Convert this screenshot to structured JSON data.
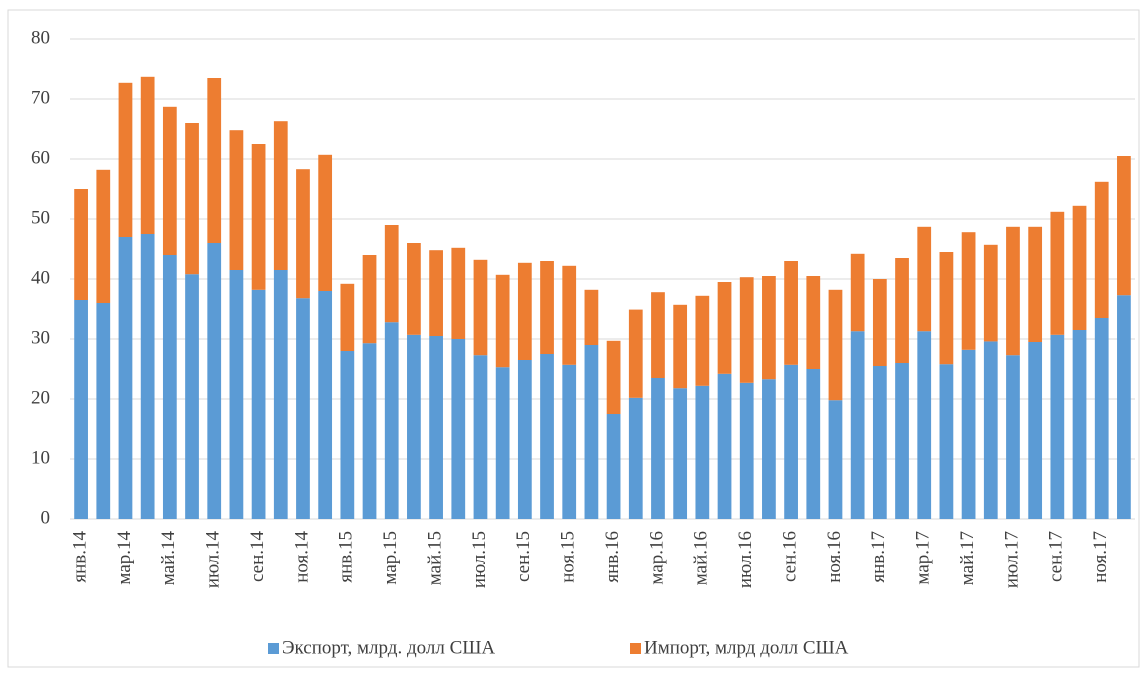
{
  "chart_data": {
    "type": "stacked_bar",
    "categories": [
      "янв.14",
      null,
      "мар.14",
      null,
      "май.14",
      null,
      "июл.14",
      null,
      "сен.14",
      null,
      "ноя.14",
      null,
      "янв.15",
      null,
      "мар.15",
      null,
      "май.15",
      null,
      "июл.15",
      null,
      "сен.15",
      null,
      "ноя.15",
      null,
      "янв.16",
      null,
      "мар.16",
      null,
      "май.16",
      null,
      "июл.16",
      null,
      "сен.16",
      null,
      "ноя.16",
      null,
      "янв.17",
      null,
      "мар.17",
      null,
      "май.17",
      null,
      "июл.17",
      null,
      "сен.17",
      null,
      "ноя.17",
      null
    ],
    "series": [
      {
        "name": "Экспорт, млрд. долл США",
        "color": "#5b9bd5",
        "values": [
          36.5,
          36,
          47,
          47.5,
          44,
          40.8,
          46,
          41.5,
          38.2,
          41.5,
          36.8,
          38,
          28,
          29.3,
          32.8,
          30.7,
          30.5,
          30,
          27.3,
          25.3,
          26.5,
          27.5,
          25.7,
          29,
          17.5,
          20.2,
          23.5,
          21.8,
          22.2,
          24.2,
          22.7,
          23.3,
          25.7,
          25,
          19.8,
          31.3,
          25.5,
          26,
          31.3,
          25.8,
          28.2,
          29.6,
          27.3,
          29.5,
          30.7,
          31.5,
          33.5,
          37.3
        ]
      },
      {
        "name": "Импорт, млрд долл США",
        "color": "#ed7d31",
        "values": [
          18.5,
          22.2,
          25.7,
          26.2,
          24.7,
          25.2,
          27.5,
          23.3,
          24.3,
          24.8,
          21.5,
          22.7,
          11.2,
          14.7,
          16.2,
          15.3,
          14.3,
          15.2,
          15.9,
          15.4,
          16.2,
          15.5,
          16.5,
          9.2,
          12.2,
          14.7,
          14.3,
          13.9,
          15,
          15.3,
          17.6,
          17.2,
          17.3,
          15.5,
          18.4,
          12.9,
          14.5,
          17.5,
          17.4,
          18.7,
          19.6,
          16.1,
          21.4,
          19.2,
          20.5,
          20.7,
          22.7,
          23.2
        ]
      }
    ],
    "ylim": [
      0,
      80
    ],
    "yticks": [
      0,
      10,
      20,
      30,
      40,
      50,
      60,
      70,
      80
    ],
    "grid": true,
    "legend": "bottom"
  }
}
